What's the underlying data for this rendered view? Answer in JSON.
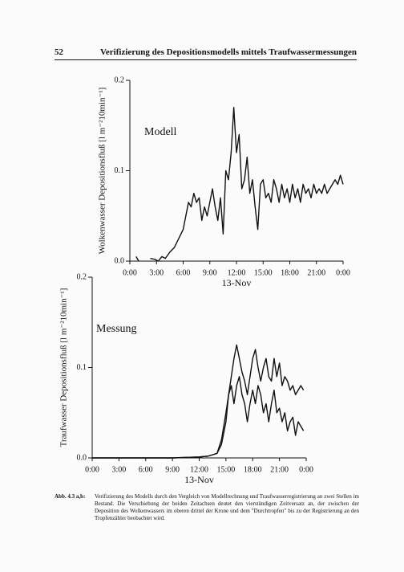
{
  "header": {
    "page_number": "52",
    "title": "Verifizierung des Depositionsmodells mittels Traufwassermessungen"
  },
  "chart_data": [
    {
      "type": "line",
      "annotation": "Modell",
      "xlabel": "13-Nov",
      "ylabel": "Wolkenwasser Depositionsfluß [l m⁻²10min⁻¹]",
      "xlim": [
        0,
        24
      ],
      "ylim": [
        0,
        0.2
      ],
      "xticks": [
        {
          "value": 0,
          "label": "0:00"
        },
        {
          "value": 3,
          "label": "3:00"
        },
        {
          "value": 6,
          "label": "6:00"
        },
        {
          "value": 9,
          "label": "9:00"
        },
        {
          "value": 12,
          "label": "12:00"
        },
        {
          "value": 15,
          "label": "15:00"
        },
        {
          "value": 18,
          "label": "18:00"
        },
        {
          "value": 21,
          "label": "21:00"
        },
        {
          "value": 24,
          "label": "0:00"
        }
      ],
      "yticks": [
        {
          "value": 0,
          "label": "0.0"
        },
        0.1,
        0.2
      ],
      "x": [
        0.7,
        1.0,
        1.2,
        2.3,
        2.8,
        3.2,
        3.6,
        4.0,
        4.5,
        5.0,
        5.5,
        6.0,
        6.3,
        6.6,
        6.9,
        7.2,
        7.5,
        7.8,
        8.1,
        8.4,
        8.7,
        9.0,
        9.3,
        9.6,
        9.9,
        10.2,
        10.5,
        10.8,
        11.1,
        11.4,
        11.7,
        12.0,
        12.3,
        12.6,
        12.9,
        13.2,
        13.5,
        13.8,
        14.1,
        14.4,
        14.7,
        15.0,
        15.3,
        15.6,
        15.9,
        16.2,
        16.5,
        16.8,
        17.1,
        17.4,
        17.7,
        18.0,
        18.3,
        18.6,
        18.9,
        19.2,
        19.5,
        19.8,
        20.1,
        20.4,
        20.7,
        21.0,
        21.3,
        21.6,
        21.9,
        22.2,
        22.5,
        22.8,
        23.1,
        23.4,
        23.7,
        24.0
      ],
      "values": [
        0.005,
        0.0,
        null,
        0.003,
        0.002,
        0.0,
        0.005,
        0.003,
        0.01,
        0.015,
        0.025,
        0.035,
        0.05,
        0.065,
        0.06,
        0.075,
        0.065,
        0.07,
        0.045,
        0.06,
        0.05,
        0.065,
        0.08,
        0.06,
        0.045,
        0.07,
        0.03,
        0.1,
        0.09,
        0.12,
        0.17,
        0.12,
        0.14,
        0.08,
        0.09,
        0.115,
        0.075,
        0.09,
        0.06,
        0.035,
        0.085,
        0.09,
        0.07,
        0.075,
        0.065,
        0.09,
        0.08,
        0.065,
        0.085,
        0.07,
        0.08,
        0.065,
        0.085,
        0.07,
        0.08,
        0.065,
        0.085,
        0.075,
        0.08,
        0.07,
        0.085,
        0.075,
        0.08,
        0.075,
        0.085,
        0.075,
        0.08,
        0.085,
        0.09,
        0.085,
        0.095,
        0.085
      ],
      "color": "#111111"
    },
    {
      "type": "line",
      "annotation": "Messung",
      "xlabel": "13-Nov",
      "ylabel": "Traufwasser Depositionsfluß [l m⁻²10min⁻¹]",
      "xlim": [
        0,
        24
      ],
      "ylim": [
        0,
        0.2
      ],
      "xticks": [
        {
          "value": 0,
          "label": "0:00"
        },
        {
          "value": 3,
          "label": "3:00"
        },
        {
          "value": 6,
          "label": "6:00"
        },
        {
          "value": 9,
          "label": "9:00"
        },
        {
          "value": 12,
          "label": "12:00"
        },
        {
          "value": 15,
          "label": "15:00"
        },
        {
          "value": 18,
          "label": "18:00"
        },
        {
          "value": 21,
          "label": "21:00"
        },
        {
          "value": 24,
          "label": "0:00"
        }
      ],
      "yticks": [
        {
          "value": 0,
          "label": "0.0"
        },
        0.1,
        0.2
      ],
      "x": [
        0,
        3,
        6,
        9,
        12,
        13,
        14,
        14.5,
        15.0,
        15.3,
        15.6,
        15.9,
        16.2,
        16.5,
        16.8,
        17.1,
        17.4,
        17.7,
        18.0,
        18.3,
        18.6,
        18.9,
        19.2,
        19.5,
        19.8,
        20.1,
        20.4,
        20.7,
        21.0,
        21.3,
        21.6,
        21.9,
        22.2,
        22.5,
        22.8,
        23.1,
        23.4,
        23.7
      ],
      "series": [
        {
          "color": "#111111",
          "values": [
            0.0,
            0.0,
            0.0,
            0.0,
            0.001,
            0.002,
            0.005,
            0.02,
            0.05,
            0.07,
            0.09,
            0.11,
            0.125,
            0.11,
            0.095,
            0.085,
            0.07,
            0.09,
            0.11,
            0.12,
            0.1,
            0.085,
            0.1,
            0.11,
            0.09,
            0.085,
            0.11,
            0.09,
            0.105,
            0.08,
            0.09,
            0.085,
            0.075,
            0.08,
            0.07,
            0.075,
            0.08,
            0.075
          ]
        },
        {
          "color": "#111111",
          "values": [
            0.0,
            0.0,
            0.0,
            0.0,
            0.001,
            0.002,
            0.005,
            0.015,
            0.04,
            0.07,
            0.08,
            0.06,
            0.08,
            0.09,
            0.07,
            0.06,
            0.04,
            0.06,
            0.075,
            0.06,
            0.08,
            0.07,
            0.05,
            0.06,
            0.04,
            0.06,
            0.075,
            0.05,
            0.055,
            0.04,
            0.05,
            0.03,
            0.04,
            0.045,
            0.025,
            0.04,
            0.035,
            0.03
          ]
        }
      ]
    }
  ],
  "caption": {
    "label": "Abb. 4.3 a,b:",
    "text": "Verifizierung des Modells durch den Vergleich von Modellrechnung und Traufwasserregistrierung an zwei Stellen im Bestand. Die Verschiebung der beiden Zeitachsen deutet den vierstündigen Zeitversatz an, der zwischen der Deposition des Wolkenwassers im oberen drittel der Krone und dem \"Durchtropfen\" bis zu der Registrierung an den Tropfenzähler beobachtet wird."
  }
}
